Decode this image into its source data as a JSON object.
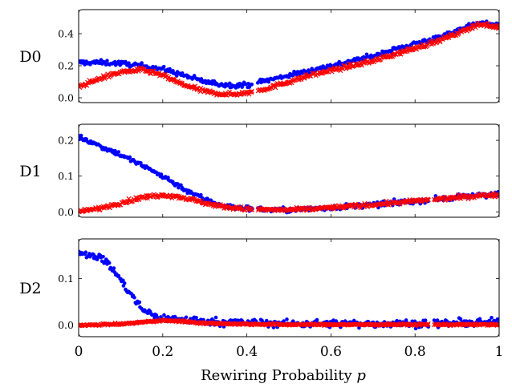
{
  "chart_data": {
    "type": "scatter",
    "xlabel": "Rewiring Probability",
    "xlabel_var": "p",
    "xlim": [
      0,
      1
    ],
    "xticks": [
      "0",
      "0.2",
      "0.4",
      "0.6",
      "0.8",
      "1"
    ],
    "xtick_values": [
      0,
      0.2,
      0.4,
      0.6,
      0.8,
      1
    ],
    "colors": {
      "series_a": "#0000ff",
      "series_b": "#ff0000",
      "frame": "#000000"
    },
    "markers": {
      "series_a": "dot",
      "series_b": "cross"
    },
    "panels": [
      {
        "label": "D0",
        "ylim": [
          -0.03,
          0.55
        ],
        "yticks": [
          "0.0",
          "0.2",
          "0.4"
        ],
        "ytick_values": [
          0.0,
          0.2,
          0.4
        ],
        "gaps": [
          0.42
        ],
        "series_a": {
          "x": [
            0,
            0.05,
            0.1,
            0.15,
            0.2,
            0.25,
            0.3,
            0.35,
            0.4,
            0.45,
            0.5,
            0.55,
            0.6,
            0.65,
            0.7,
            0.75,
            0.8,
            0.85,
            0.9,
            0.95,
            1
          ],
          "y": [
            0.22,
            0.22,
            0.215,
            0.2,
            0.18,
            0.14,
            0.1,
            0.08,
            0.08,
            0.11,
            0.14,
            0.17,
            0.2,
            0.23,
            0.26,
            0.3,
            0.34,
            0.37,
            0.42,
            0.47,
            0.45
          ],
          "noise": 0.015
        },
        "series_b": {
          "x": [
            0,
            0.05,
            0.1,
            0.15,
            0.2,
            0.25,
            0.3,
            0.35,
            0.4,
            0.45,
            0.5,
            0.55,
            0.6,
            0.65,
            0.7,
            0.75,
            0.8,
            0.85,
            0.9,
            0.95,
            1
          ],
          "y": [
            0.07,
            0.12,
            0.16,
            0.175,
            0.14,
            0.08,
            0.04,
            0.02,
            0.03,
            0.06,
            0.1,
            0.14,
            0.17,
            0.2,
            0.23,
            0.27,
            0.31,
            0.35,
            0.4,
            0.46,
            0.44
          ],
          "noise": 0.012
        }
      },
      {
        "label": "D1",
        "ylim": [
          -0.015,
          0.245
        ],
        "yticks": [
          "0.0",
          "0.1",
          "0.2"
        ],
        "ytick_values": [
          0.0,
          0.1,
          0.2
        ],
        "gaps": [
          0.42,
          0.84
        ],
        "series_a": {
          "x": [
            0,
            0.05,
            0.1,
            0.15,
            0.2,
            0.25,
            0.3,
            0.35,
            0.4,
            0.45,
            0.5,
            0.55,
            0.6,
            0.65,
            0.7,
            0.75,
            0.8,
            0.85,
            0.9,
            0.95,
            1
          ],
          "y": [
            0.21,
            0.185,
            0.16,
            0.13,
            0.1,
            0.065,
            0.035,
            0.015,
            0.01,
            0.006,
            0.005,
            0.008,
            0.012,
            0.016,
            0.02,
            0.025,
            0.03,
            0.035,
            0.04,
            0.047,
            0.05
          ],
          "noise": 0.007
        },
        "series_b": {
          "x": [
            0,
            0.05,
            0.1,
            0.15,
            0.2,
            0.25,
            0.3,
            0.35,
            0.4,
            0.45,
            0.5,
            0.55,
            0.6,
            0.65,
            0.7,
            0.75,
            0.8,
            0.85,
            0.9,
            0.95,
            1
          ],
          "y": [
            0.0,
            0.01,
            0.025,
            0.04,
            0.048,
            0.04,
            0.025,
            0.013,
            0.008,
            0.006,
            0.005,
            0.008,
            0.012,
            0.016,
            0.02,
            0.025,
            0.03,
            0.035,
            0.04,
            0.045,
            0.048
          ],
          "noise": 0.005
        }
      },
      {
        "label": "D2",
        "ylim": [
          -0.025,
          0.185
        ],
        "yticks": [
          "0.0",
          "0.1"
        ],
        "ytick_values": [
          0.0,
          0.1
        ],
        "gaps": [
          0.84
        ],
        "series_a": {
          "x": [
            0,
            0.03,
            0.06,
            0.09,
            0.12,
            0.15,
            0.18,
            0.2,
            0.25,
            0.3,
            0.4,
            0.5,
            0.6,
            0.7,
            0.8,
            0.9,
            1
          ],
          "y": [
            0.155,
            0.152,
            0.14,
            0.11,
            0.07,
            0.035,
            0.02,
            0.015,
            0.012,
            0.008,
            0.005,
            0.003,
            0.003,
            0.003,
            0.003,
            0.004,
            0.006
          ],
          "noise": 0.008
        },
        "series_b": {
          "x": [
            0,
            0.1,
            0.15,
            0.2,
            0.25,
            0.3,
            0.4,
            0.5,
            0.6,
            0.7,
            0.8,
            0.9,
            1
          ],
          "y": [
            0.0,
            0.002,
            0.006,
            0.01,
            0.008,
            0.004,
            0.002,
            0.001,
            0.001,
            0.001,
            0.001,
            0.001,
            0.001
          ],
          "noise": 0.002
        }
      }
    ]
  }
}
